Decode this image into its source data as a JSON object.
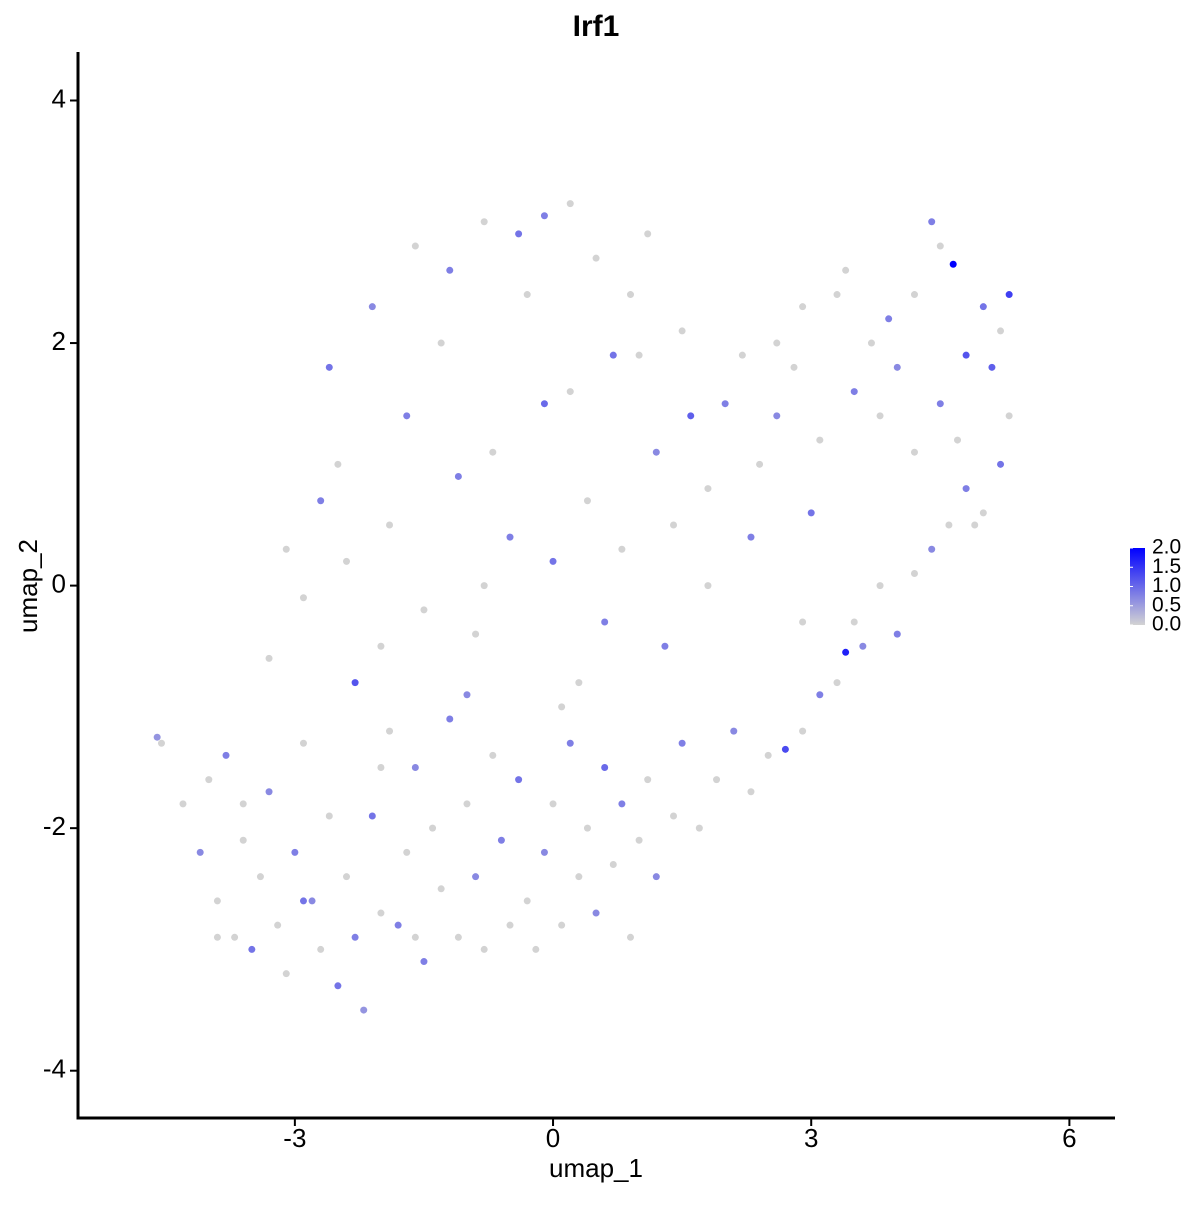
{
  "chart_data": {
    "type": "scatter",
    "title": "Irf1",
    "x_label": "umap_1",
    "y_label": "umap_2",
    "xlim": [
      -5.52,
      6.53
    ],
    "ylim": [
      -4.39,
      4.4
    ],
    "xticks": [
      -3,
      0,
      3,
      6
    ],
    "yticks": [
      -4,
      -2,
      0,
      2,
      4
    ],
    "color_low": "#d3d3d3",
    "color_high": "#0000ff",
    "colorlim": [
      0,
      2
    ],
    "colorticks": [
      {
        "value": 0,
        "label": "0.0"
      },
      {
        "value": 0.5,
        "label": "0.5"
      },
      {
        "value": 1,
        "label": "1.0"
      },
      {
        "value": 1.5,
        "label": "1.5"
      },
      {
        "value": 2,
        "label": "2.0"
      }
    ],
    "x": [
      -4.6,
      -4.55,
      -4.3,
      -4.1,
      -4.0,
      -3.9,
      -3.8,
      -3.7,
      -3.6,
      -3.5,
      -3.4,
      -3.3,
      -3.2,
      -3.1,
      -3.0,
      -2.9,
      -2.8,
      -2.7,
      -2.6,
      -2.5,
      -2.4,
      -2.3,
      -2.2,
      -2.1,
      -2.0,
      -1.9,
      -1.8,
      -1.7,
      -1.6,
      -1.5,
      -1.4,
      -1.3,
      -1.2,
      -1.1,
      -1.0,
      -0.9,
      -0.8,
      -0.7,
      -0.6,
      -0.5,
      -0.4,
      -0.3,
      -0.2,
      -0.1,
      0.0,
      0.1,
      0.2,
      0.3,
      0.4,
      0.5,
      0.6,
      0.7,
      0.8,
      0.9,
      1.0,
      1.1,
      1.2,
      1.4,
      1.5,
      1.7,
      1.9,
      2.1,
      2.3,
      2.5,
      2.7,
      2.9,
      3.1,
      3.3,
      3.4,
      3.5,
      3.6,
      3.8,
      4.0,
      4.2,
      4.4,
      4.6,
      4.8,
      5.0,
      5.2,
      5.3,
      5.1,
      5.3,
      5.2,
      5.0,
      4.8,
      4.65,
      4.4,
      4.5,
      4.2,
      4.0,
      3.8,
      3.7,
      3.5,
      3.3,
      3.1,
      3.0,
      2.8,
      2.6,
      2.4,
      2.2,
      2.0,
      1.8,
      1.6,
      1.4,
      1.2,
      1.0,
      0.8,
      0.6,
      0.4,
      0.2,
      0.0,
      -0.1,
      -0.3,
      -0.5,
      -0.7,
      -0.9,
      -1.1,
      -1.3,
      -1.5,
      -1.7,
      -1.9,
      -2.1,
      -2.3,
      -2.5,
      -2.7,
      -2.9,
      -3.1,
      -3.3,
      -2.6,
      -2.4,
      -2.0,
      -1.6,
      -1.2,
      -0.8,
      -0.4,
      -0.1,
      0.2,
      0.5,
      0.9,
      1.1,
      0.7,
      1.5,
      2.6,
      2.9,
      3.4,
      3.9,
      4.2,
      4.5,
      4.7,
      4.9,
      -0.8,
      0.3,
      1.3,
      1.8,
      2.3,
      2.9,
      -3.6,
      -2.0,
      -1.0,
      0.1,
      -3.9,
      -2.9,
      -1.6
    ],
    "y": [
      -1.25,
      -1.3,
      -1.8,
      -2.2,
      -1.6,
      -2.6,
      -1.4,
      -2.9,
      -2.1,
      -3.0,
      -2.4,
      -1.7,
      -2.8,
      -3.2,
      -2.2,
      -1.3,
      -2.6,
      -3.0,
      -1.9,
      -3.3,
      -2.4,
      -2.9,
      -3.5,
      -1.9,
      -2.7,
      -1.2,
      -2.8,
      -2.2,
      -1.5,
      -3.1,
      -2.0,
      -2.5,
      -1.1,
      -2.9,
      -1.8,
      -2.4,
      -3.0,
      -1.4,
      -2.1,
      -2.8,
      -1.6,
      -2.6,
      -3.0,
      -2.2,
      -1.8,
      -2.8,
      -1.3,
      -2.4,
      -2.0,
      -2.7,
      -1.5,
      -2.3,
      -1.8,
      -2.9,
      -2.1,
      -1.6,
      -2.4,
      -1.9,
      -1.3,
      -2.0,
      -1.6,
      -1.2,
      -1.7,
      -1.4,
      -1.35,
      -1.2,
      -0.9,
      -0.8,
      -0.55,
      -0.3,
      -0.5,
      0.0,
      -0.4,
      0.1,
      0.3,
      0.5,
      0.8,
      0.6,
      1.0,
      1.4,
      1.8,
      2.4,
      2.1,
      2.3,
      1.9,
      2.65,
      3.0,
      2.8,
      2.4,
      1.8,
      1.4,
      2.0,
      1.6,
      2.4,
      1.2,
      0.6,
      1.8,
      1.4,
      1.0,
      1.9,
      1.5,
      0.8,
      1.4,
      0.5,
      1.1,
      1.9,
      0.3,
      -0.3,
      0.7,
      1.6,
      0.2,
      1.5,
      2.4,
      0.4,
      1.1,
      -0.4,
      0.9,
      2.0,
      -0.2,
      1.4,
      0.5,
      2.3,
      -0.8,
      1.0,
      0.7,
      -0.1,
      0.3,
      -0.6,
      1.8,
      0.2,
      -0.5,
      2.8,
      2.6,
      3.0,
      2.9,
      3.05,
      3.15,
      2.7,
      2.4,
      2.9,
      1.9,
      2.1,
      2.0,
      2.3,
      2.6,
      2.2,
      1.1,
      1.5,
      1.2,
      0.5,
      0.0,
      -0.8,
      -0.5,
      0.0,
      0.4,
      -0.3,
      -1.8,
      -1.5,
      -0.9,
      -1.0,
      -2.9,
      -2.6,
      -2.9
    ],
    "values": [
      0.6,
      0,
      0,
      0.7,
      0,
      0,
      0.8,
      0,
      0,
      0.9,
      0,
      0.7,
      0,
      0,
      0.8,
      0,
      0.7,
      0,
      0,
      0.9,
      0,
      0.8,
      0.6,
      0.9,
      0,
      0,
      0.8,
      0,
      0.7,
      0.8,
      0,
      0,
      0.8,
      0,
      0,
      0.7,
      0,
      0,
      0.8,
      0,
      0.9,
      0,
      0,
      0.7,
      0,
      0,
      0.8,
      0,
      0,
      0.7,
      1.0,
      0,
      0.8,
      0,
      0,
      0,
      0.7,
      0,
      0.8,
      0,
      0,
      0.7,
      0,
      0,
      1.3,
      0,
      0.8,
      0,
      1.7,
      0,
      0.7,
      0,
      0.8,
      0,
      0.7,
      0,
      0.8,
      0,
      0.9,
      0,
      1.1,
      1.4,
      0,
      0.9,
      1.2,
      2.0,
      0.8,
      0,
      0,
      0.7,
      0,
      0,
      0.8,
      0,
      0,
      0.9,
      0,
      0.7,
      0,
      0,
      0.8,
      0,
      1.1,
      0,
      0.7,
      0,
      0,
      0.8,
      0,
      0,
      0.9,
      1.0,
      0,
      0.8,
      0,
      0,
      0.8,
      0,
      0,
      0.8,
      0,
      0.7,
      1.2,
      0,
      0.8,
      0,
      0,
      0,
      0.9,
      0,
      0,
      0,
      0.8,
      0,
      0.9,
      0.8,
      0,
      0,
      0,
      0,
      0.9,
      0,
      0,
      0,
      0,
      0.8,
      0,
      0.8,
      0,
      0,
      0,
      0,
      0.8,
      0,
      0.8,
      0,
      0,
      0,
      0.7,
      0,
      0,
      0.9,
      0
    ]
  }
}
